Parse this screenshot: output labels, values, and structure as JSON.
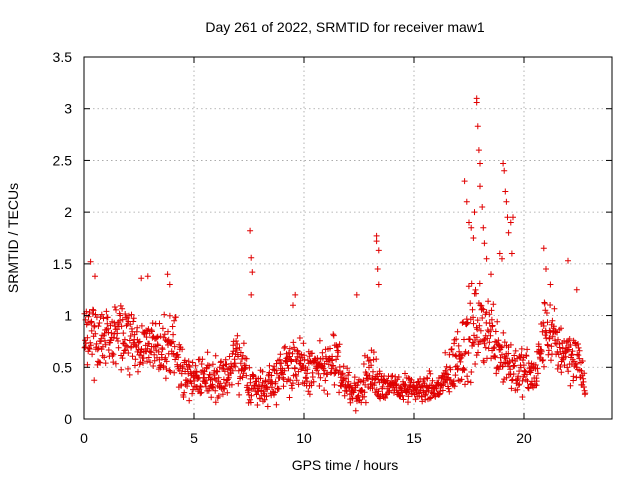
{
  "chart_data": {
    "type": "scatter",
    "title": "Day 261 of 2022, SRMTID for receiver maw1",
    "xlabel": "GPS time / hours",
    "ylabel": "SRMTID / TECUs",
    "xlim": [
      0,
      24
    ],
    "ylim": [
      0,
      3.5
    ],
    "x_ticks": [
      0,
      5,
      10,
      15,
      20
    ],
    "y_ticks": [
      0,
      0.5,
      1,
      1.5,
      2,
      2.5,
      3,
      3.5
    ],
    "x_tick_labels": [
      "0",
      "5",
      "10",
      "15",
      "20"
    ],
    "y_tick_labels": [
      "0",
      "0.5",
      "1",
      "1.5",
      "2",
      "2.5",
      "3",
      "3.5"
    ],
    "grid": true,
    "marker": "+",
    "series": [
      {
        "name": "maw1",
        "color": "#e00000",
        "envelope": {
          "x": [
            0,
            0.5,
            1,
            1.5,
            2,
            2.5,
            3,
            3.5,
            4,
            4.5,
            5,
            5.5,
            6,
            6.5,
            7,
            7.5,
            8,
            8.5,
            9,
            9.5,
            10,
            10.5,
            11,
            11.5,
            12,
            12.5,
            13,
            13.5,
            14,
            14.5,
            15,
            15.5,
            16,
            16.5,
            17,
            17.5,
            18,
            18.5,
            19,
            19.5,
            20,
            20.5,
            21,
            21.5,
            22,
            22.5,
            22.8
          ],
          "y": [
            0.85,
            0.8,
            0.75,
            0.8,
            0.78,
            0.72,
            0.68,
            0.65,
            0.75,
            0.45,
            0.42,
            0.4,
            0.42,
            0.4,
            0.6,
            0.35,
            0.3,
            0.35,
            0.5,
            0.55,
            0.45,
            0.5,
            0.5,
            0.55,
            0.3,
            0.25,
            0.45,
            0.35,
            0.3,
            0.3,
            0.28,
            0.3,
            0.28,
            0.4,
            0.6,
            0.8,
            0.9,
            0.85,
            0.65,
            0.5,
            0.45,
            0.4,
            0.9,
            0.7,
            0.65,
            0.55,
            0.3
          ],
          "spread": [
            0.3,
            0.3,
            0.25,
            0.28,
            0.25,
            0.25,
            0.25,
            0.25,
            0.3,
            0.2,
            0.18,
            0.18,
            0.18,
            0.18,
            0.25,
            0.18,
            0.15,
            0.2,
            0.22,
            0.25,
            0.22,
            0.2,
            0.22,
            0.25,
            0.15,
            0.12,
            0.25,
            0.15,
            0.12,
            0.12,
            0.1,
            0.12,
            0.12,
            0.2,
            0.3,
            0.4,
            0.35,
            0.3,
            0.3,
            0.25,
            0.2,
            0.2,
            0.3,
            0.25,
            0.25,
            0.2,
            0.15
          ]
        },
        "outliers": [
          [
            0.3,
            1.52
          ],
          [
            0.5,
            1.38
          ],
          [
            2.6,
            1.36
          ],
          [
            2.9,
            1.38
          ],
          [
            3.8,
            1.4
          ],
          [
            3.9,
            1.3
          ],
          [
            7.55,
            1.82
          ],
          [
            7.6,
            1.56
          ],
          [
            7.65,
            1.42
          ],
          [
            7.6,
            1.2
          ],
          [
            9.5,
            1.1
          ],
          [
            9.6,
            1.2
          ],
          [
            12.4,
            1.2
          ],
          [
            13.3,
            1.77
          ],
          [
            13.3,
            1.72
          ],
          [
            13.4,
            1.63
          ],
          [
            13.35,
            1.45
          ],
          [
            13.4,
            1.3
          ],
          [
            17.3,
            2.3
          ],
          [
            17.4,
            2.1
          ],
          [
            17.5,
            1.9
          ],
          [
            17.6,
            1.85
          ],
          [
            17.7,
            1.75
          ],
          [
            17.75,
            2.0
          ],
          [
            17.85,
            3.1
          ],
          [
            17.85,
            3.06
          ],
          [
            17.9,
            2.83
          ],
          [
            17.95,
            2.6
          ],
          [
            18.0,
            2.47
          ],
          [
            18.0,
            2.25
          ],
          [
            18.1,
            2.05
          ],
          [
            18.15,
            1.85
          ],
          [
            18.2,
            1.7
          ],
          [
            18.3,
            1.55
          ],
          [
            18.5,
            1.4
          ],
          [
            18.9,
            1.6
          ],
          [
            19.0,
            1.55
          ],
          [
            19.05,
            2.47
          ],
          [
            19.1,
            2.4
          ],
          [
            19.15,
            2.2
          ],
          [
            19.2,
            2.1
          ],
          [
            19.25,
            1.95
          ],
          [
            19.3,
            1.8
          ],
          [
            19.4,
            1.9
          ],
          [
            19.5,
            1.95
          ],
          [
            19.45,
            1.6
          ],
          [
            20.9,
            1.65
          ],
          [
            21.0,
            1.45
          ],
          [
            21.2,
            1.3
          ],
          [
            22.0,
            1.53
          ],
          [
            22.4,
            1.25
          ]
        ]
      }
    ]
  }
}
